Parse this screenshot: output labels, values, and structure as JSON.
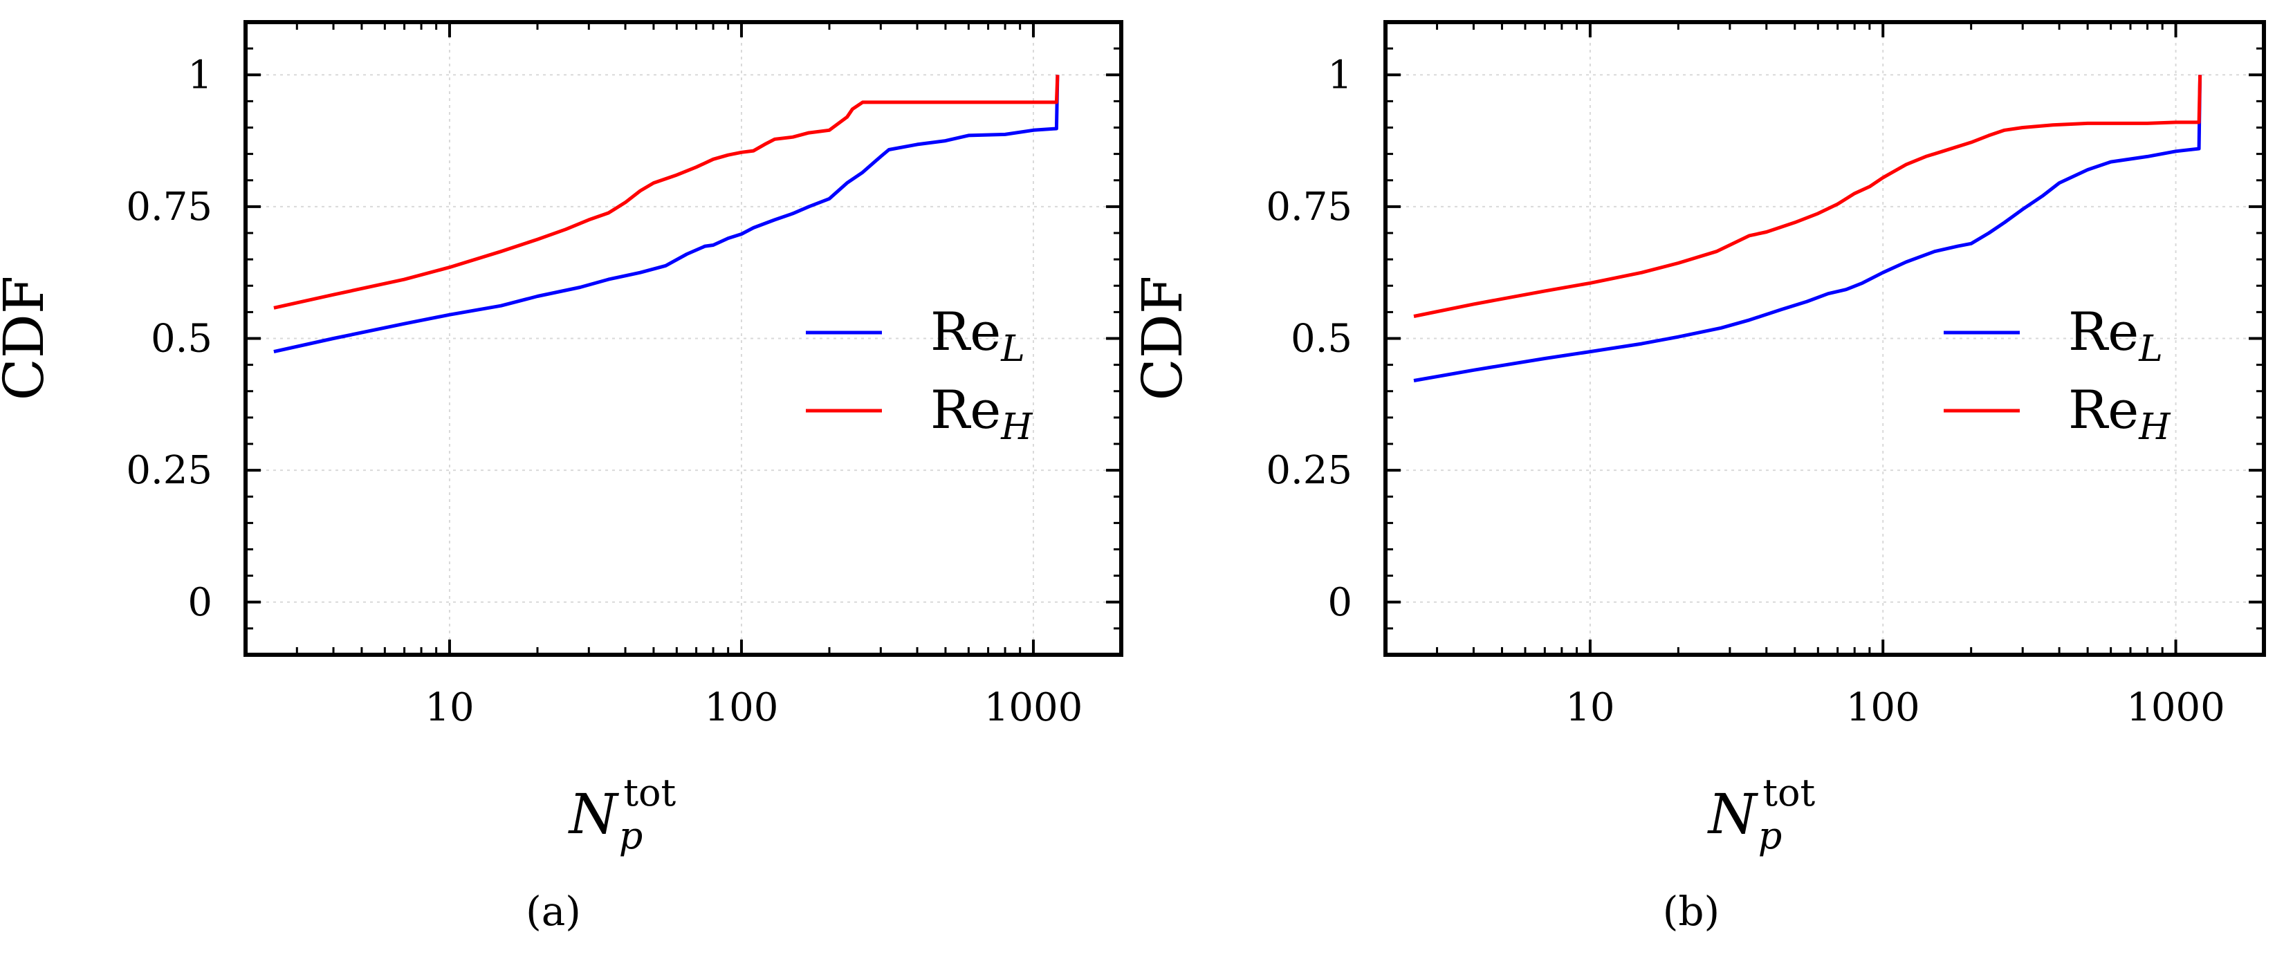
{
  "figure": {
    "panel_labels": [
      "(a)",
      "(b)"
    ]
  },
  "colors": {
    "series_low": "#0000ff",
    "series_high": "#ff0000",
    "grid": "#d9d9d9",
    "axis": "#000000"
  },
  "chart_data": [
    {
      "type": "line",
      "panel": "(a)",
      "title": "",
      "xlabel": {
        "base": "N",
        "sub": "p",
        "sup": "tot"
      },
      "ylabel": "CDF",
      "xscale": "log",
      "xlim": [
        2,
        2000
      ],
      "ylim": [
        -0.1,
        1.1
      ],
      "xticks": [
        10,
        100,
        1000
      ],
      "xtick_labels": [
        "10",
        "100",
        "1000"
      ],
      "yticks": [
        0,
        0.25,
        0.5,
        0.75,
        1
      ],
      "ytick_labels": [
        "0",
        "0.25",
        "0.5",
        "0.75",
        "1"
      ],
      "grid": true,
      "legend_position": "right-middle",
      "series": [
        {
          "name": "Re_L",
          "label_base": "Re",
          "label_sub": "L",
          "color": "#0000ff",
          "x": [
            2.5,
            4,
            7,
            10,
            15,
            20,
            28,
            35,
            45,
            55,
            65,
            75,
            80,
            90,
            100,
            110,
            130,
            150,
            170,
            200,
            230,
            260,
            290,
            300,
            320,
            400,
            500,
            600,
            800,
            1000,
            1200,
            1210
          ],
          "y": [
            0.475,
            0.5,
            0.528,
            0.545,
            0.562,
            0.58,
            0.597,
            0.612,
            0.625,
            0.638,
            0.66,
            0.675,
            0.677,
            0.69,
            0.698,
            0.71,
            0.725,
            0.737,
            0.75,
            0.765,
            0.795,
            0.815,
            0.838,
            0.845,
            0.858,
            0.868,
            0.875,
            0.885,
            0.887,
            0.895,
            0.898,
            1.0
          ]
        },
        {
          "name": "Re_H",
          "label_base": "Re",
          "label_sub": "H",
          "color": "#ff0000",
          "x": [
            2.5,
            4,
            7,
            10,
            15,
            20,
            25,
            30,
            35,
            40,
            45,
            50,
            60,
            70,
            80,
            90,
            100,
            110,
            120,
            130,
            150,
            170,
            200,
            230,
            240,
            260,
            300,
            400,
            600,
            1000,
            1200,
            1210
          ],
          "y": [
            0.558,
            0.583,
            0.612,
            0.635,
            0.665,
            0.688,
            0.707,
            0.725,
            0.738,
            0.758,
            0.78,
            0.795,
            0.81,
            0.825,
            0.84,
            0.848,
            0.853,
            0.856,
            0.868,
            0.878,
            0.882,
            0.89,
            0.895,
            0.92,
            0.935,
            0.948,
            0.948,
            0.948,
            0.948,
            0.948,
            0.948,
            1.0
          ]
        }
      ]
    },
    {
      "type": "line",
      "panel": "(b)",
      "title": "",
      "xlabel": {
        "base": "N",
        "sub": "p",
        "sup": "tot"
      },
      "ylabel": "CDF",
      "xscale": "log",
      "xlim": [
        2,
        2000
      ],
      "ylim": [
        -0.1,
        1.1
      ],
      "xticks": [
        10,
        100,
        1000
      ],
      "xtick_labels": [
        "10",
        "100",
        "1000"
      ],
      "yticks": [
        0,
        0.25,
        0.5,
        0.75,
        1
      ],
      "ytick_labels": [
        "0",
        "0.25",
        "0.5",
        "0.75",
        "1"
      ],
      "grid": true,
      "legend_position": "right-middle",
      "series": [
        {
          "name": "Re_L",
          "label_base": "Re",
          "label_sub": "L",
          "color": "#0000ff",
          "x": [
            2.5,
            4,
            7,
            10,
            15,
            20,
            28,
            35,
            45,
            55,
            65,
            75,
            85,
            100,
            120,
            150,
            180,
            200,
            230,
            260,
            300,
            350,
            400,
            500,
            600,
            800,
            1000,
            1200,
            1210
          ],
          "y": [
            0.42,
            0.44,
            0.462,
            0.475,
            0.49,
            0.503,
            0.52,
            0.535,
            0.555,
            0.57,
            0.585,
            0.593,
            0.605,
            0.625,
            0.645,
            0.665,
            0.675,
            0.68,
            0.7,
            0.72,
            0.745,
            0.77,
            0.795,
            0.82,
            0.835,
            0.845,
            0.855,
            0.86,
            1.0
          ]
        },
        {
          "name": "Re_H",
          "label_base": "Re",
          "label_sub": "H",
          "color": "#ff0000",
          "x": [
            2.5,
            4,
            7,
            10,
            15,
            20,
            27,
            35,
            40,
            50,
            60,
            70,
            80,
            90,
            100,
            120,
            140,
            160,
            200,
            230,
            260,
            300,
            380,
            500,
            800,
            1000,
            1200,
            1210
          ],
          "y": [
            0.542,
            0.565,
            0.59,
            0.605,
            0.625,
            0.643,
            0.665,
            0.695,
            0.702,
            0.72,
            0.737,
            0.755,
            0.775,
            0.788,
            0.805,
            0.83,
            0.845,
            0.855,
            0.872,
            0.885,
            0.895,
            0.9,
            0.905,
            0.908,
            0.908,
            0.91,
            0.91,
            1.0
          ]
        }
      ]
    }
  ]
}
